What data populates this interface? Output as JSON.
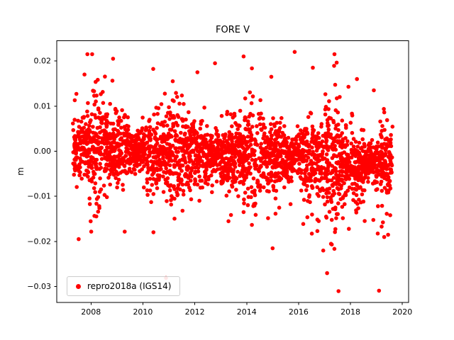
{
  "title": "FORE V",
  "legend": {
    "label": "repro2018a (IGS14)",
    "marker_color": "#ff0000"
  },
  "chart_data": {
    "type": "scatter",
    "title": "FORE V",
    "xlabel": "",
    "ylabel": "m",
    "grid": false,
    "legend_loc": "lower left",
    "xlim": [
      2006.68,
      2020.24
    ],
    "ylim": [
      -0.0335,
      0.0245
    ],
    "xticks": [
      2008,
      2010,
      2012,
      2014,
      2016,
      2018,
      2020
    ],
    "xtick_labels": [
      "2008",
      "2010",
      "2012",
      "2014",
      "2016",
      "2018",
      "2020"
    ],
    "yticks": [
      0.02,
      0.01,
      0.0,
      -0.01,
      -0.02,
      -0.03
    ],
    "ytick_labels": [
      "0.02",
      "0.01",
      "0.00",
      "−0.01",
      "−0.02",
      "−0.03"
    ],
    "series": [
      {
        "name": "repro2018a (IGS14)",
        "color": "#ff0000",
        "marker": "dot",
        "marker_radius_px": 2.8,
        "x_range": [
          2007.3,
          2019.62
        ],
        "n_points": 2800,
        "seed": 42,
        "mean_start": 0.0008,
        "mean_slope_per_year": -0.0003,
        "std_base": 0.0042,
        "heavy_tail_prob": 0.03,
        "late_negative_tail_start": 2016.3,
        "clip": [
          -0.0315,
          0.0215
        ],
        "outliers": [
          [
            2007.75,
            0.017
          ],
          [
            2008.85,
            0.0205
          ],
          [
            2009.3,
            -0.0178
          ],
          [
            2012.1,
            0.0175
          ],
          [
            2012.78,
            0.0195
          ],
          [
            2013.3,
            -0.0155
          ],
          [
            2013.88,
            0.021
          ],
          [
            2014.95,
            0.0165
          ],
          [
            2015.0,
            -0.0215
          ],
          [
            2015.85,
            0.022
          ],
          [
            2016.55,
            0.0185
          ],
          [
            2016.95,
            -0.022
          ],
          [
            2017.1,
            -0.027
          ],
          [
            2017.25,
            -0.0205
          ],
          [
            2018.25,
            0.016
          ],
          [
            2018.9,
            0.0135
          ],
          [
            2019.1,
            -0.0309
          ],
          [
            2019.3,
            -0.019
          ],
          [
            2019.45,
            -0.0185
          ]
        ]
      }
    ]
  }
}
